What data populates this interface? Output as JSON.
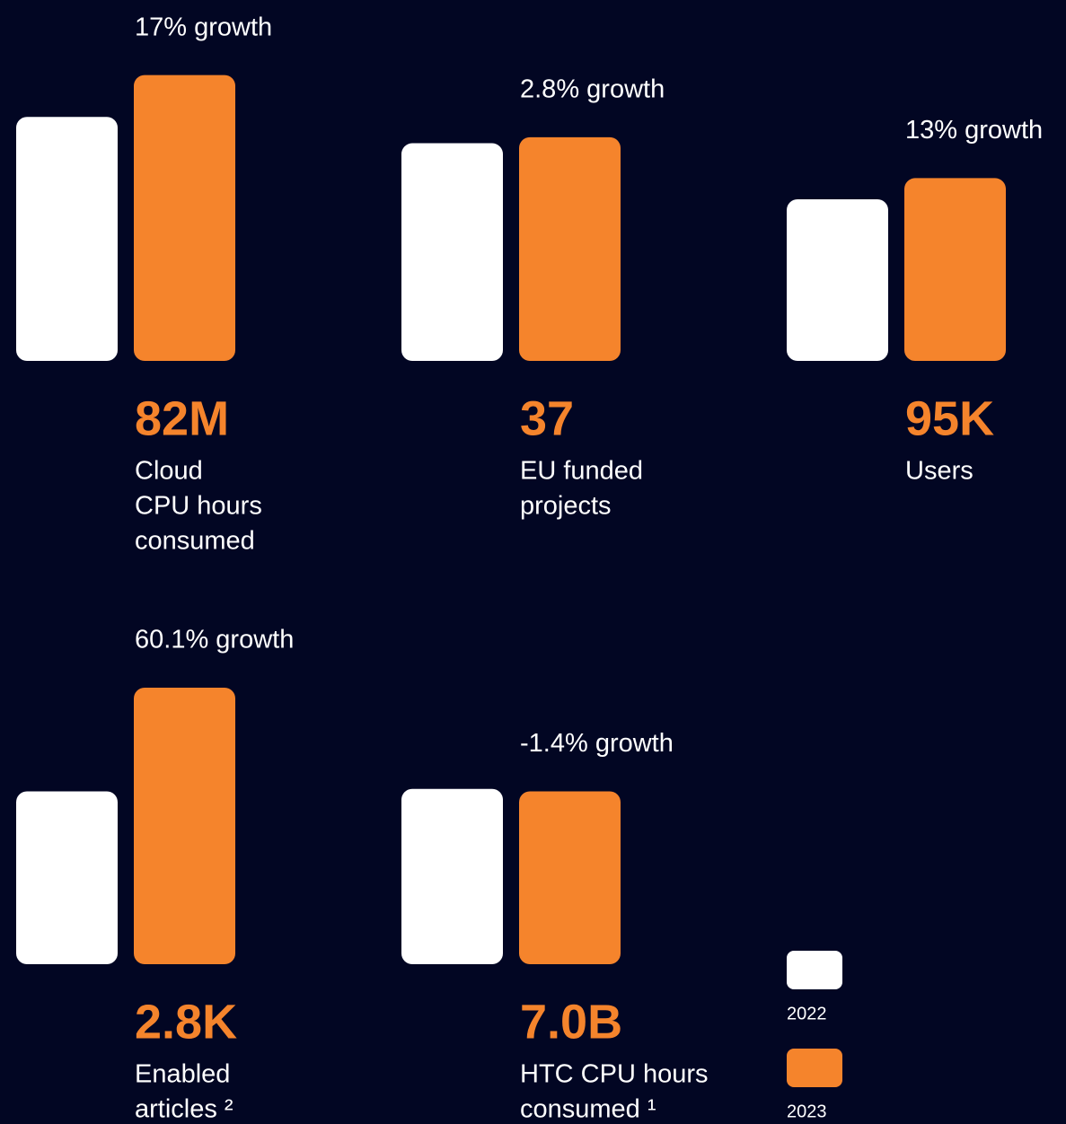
{
  "chart_data": [
    {
      "type": "bar",
      "annotation": "17% growth",
      "label": [
        "Cloud",
        "CPU hours",
        "consumed"
      ],
      "ylim": [
        0,
        85
      ],
      "series": [
        {
          "name": "2022",
          "color": "#ffffff",
          "values": [
            70
          ]
        },
        {
          "name": "2023",
          "color": "#f5842c",
          "values": [
            82
          ],
          "value_labels": [
            "82M"
          ]
        }
      ]
    },
    {
      "type": "bar",
      "annotation": "2.8% growth",
      "label": [
        "EU funded",
        "projects"
      ],
      "ylim": [
        0,
        49
      ],
      "series": [
        {
          "name": "2022",
          "color": "#ffffff",
          "values": [
            36
          ]
        },
        {
          "name": "2023",
          "color": "#f5842c",
          "values": [
            37
          ],
          "value_labels": [
            "37"
          ]
        }
      ]
    },
    {
      "type": "bar",
      "annotation": "13% growth",
      "label": [
        "Users"
      ],
      "ylim": [
        0,
        154
      ],
      "series": [
        {
          "name": "2022",
          "color": "#ffffff",
          "values": [
            84
          ]
        },
        {
          "name": "2023",
          "color": "#f5842c",
          "values": [
            95
          ],
          "value_labels": [
            "95K"
          ]
        }
      ]
    },
    {
      "type": "bar",
      "annotation": "60.1% growth",
      "label": [
        "Enabled",
        "articles ²"
      ],
      "ylim": [
        0,
        3
      ],
      "series": [
        {
          "name": "2022",
          "color": "#ffffff",
          "values": [
            1.75
          ]
        },
        {
          "name": "2023",
          "color": "#f5842c",
          "values": [
            2.8
          ],
          "value_labels": [
            "2.8K"
          ]
        }
      ]
    },
    {
      "type": "bar",
      "annotation": "-1.4% growth",
      "label": [
        "HTC CPU hours",
        "consumed ¹"
      ],
      "ylim": [
        0,
        12
      ],
      "series": [
        {
          "name": "2022",
          "color": "#ffffff",
          "values": [
            7.1
          ]
        },
        {
          "name": "2023",
          "color": "#f5842c",
          "values": [
            7.0
          ],
          "value_labels": [
            "7.0B"
          ]
        }
      ]
    }
  ]
}
